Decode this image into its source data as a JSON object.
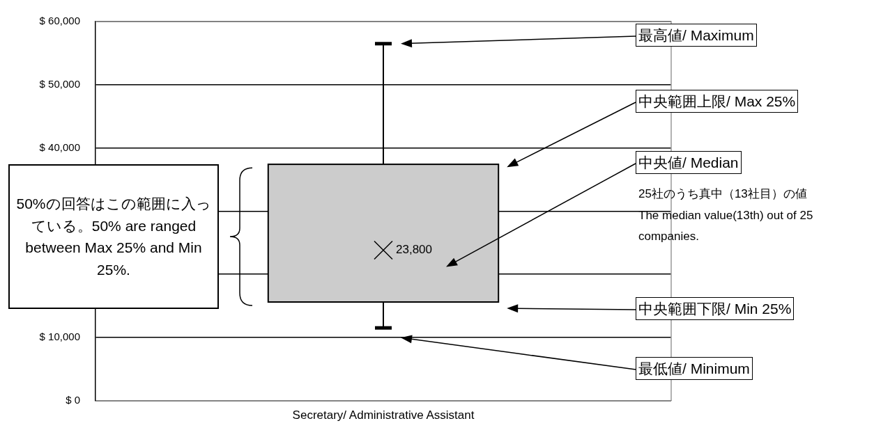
{
  "chart_data": {
    "type": "box",
    "categories": [
      "Secretary/ Administrative Assistant"
    ],
    "series": [
      {
        "color": "#cccccc",
        "boxes": [
          {
            "low": 11500,
            "q1": 15600,
            "median": 23800,
            "q3": 37400,
            "high": 56500
          }
        ],
        "value_labels": [
          "23,800"
        ]
      }
    ],
    "ylim": [
      0,
      60000
    ],
    "yticks": [
      {
        "value": 0,
        "label": "$ 0"
      },
      {
        "value": 10000,
        "label": "$ 10,000"
      },
      {
        "value": 20000,
        "label": null
      },
      {
        "value": 30000,
        "label": null
      },
      {
        "value": 40000,
        "label": "$ 40,000"
      },
      {
        "value": 50000,
        "label": "$ 50,000"
      },
      {
        "value": 60000,
        "label": "$ 60,000"
      }
    ],
    "grid": "y",
    "marker": "cross",
    "annotations": [
      "最高値/ Maximum",
      "中央範囲上限/ Max 25%",
      "中央値/ Median",
      "中央範囲下限/ Min 25%",
      "最低値/ Minimum",
      "50%の回答はこの範囲に入っている。50% are ranged between Max 25% and Min 25%.",
      "25社のうち真中（13社目）の値\nThe median value(13th) out of 25 companies."
    ]
  }
}
